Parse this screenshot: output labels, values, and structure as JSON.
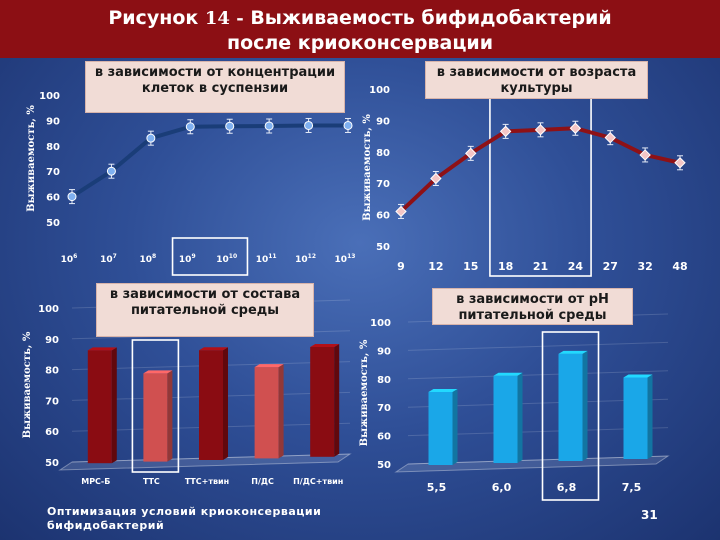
{
  "title": {
    "prefix": "Рисунок",
    "number": "14 -",
    "line1_rest": "Выживаемость бифидобактерий",
    "line2": "после криоконсервации"
  },
  "footer": "Оптимизация условий криоконсервации бифидобактерий",
  "page_number": "31",
  "colors": {
    "title_bg": "#8c0f14",
    "line_blue": "#1a3d78",
    "line_red": "#8e1116",
    "bar_dark_red": "#8a0c12",
    "bar_light_red": "#d05050",
    "bar_cyan": "#1aa7e8",
    "highlight": "#ffffff"
  },
  "chart_data": [
    {
      "type": "line",
      "panel": "top-left",
      "label": "в зависимости от концентрации клеток в суспензии",
      "ylabel": "Выживаемость, %",
      "ylim": [
        50,
        100
      ],
      "yticks": [
        "50",
        "60",
        "70",
        "80",
        "90",
        "100"
      ],
      "categories": [
        "10^6",
        "10^7",
        "10^8",
        "10^9",
        "10^10",
        "10^11",
        "10^12",
        "10^13"
      ],
      "cat_base": "10",
      "cat_exp": [
        "6",
        "7",
        "8",
        "9",
        "10",
        "11",
        "12",
        "13"
      ],
      "values": [
        60,
        70,
        83,
        87.5,
        87.7,
        87.8,
        88,
        88
      ],
      "highlighted": [
        "10^9",
        "10^10"
      ]
    },
    {
      "type": "line",
      "panel": "top-right",
      "label": "в зависимости от возраста культуры",
      "ylabel": "Выживаемость, %",
      "ylim": [
        50,
        100
      ],
      "yticks": [
        "50",
        "60",
        "70",
        "80",
        "90",
        "100"
      ],
      "categories": [
        "9",
        "12",
        "15",
        "18",
        "21",
        "24",
        "27",
        "32",
        "48"
      ],
      "values": [
        61,
        71.5,
        79.5,
        86.5,
        87,
        87.5,
        84.5,
        79,
        76.5
      ],
      "highlighted": [
        "18",
        "21",
        "24"
      ]
    },
    {
      "type": "bar",
      "panel": "bottom-left",
      "label": "в зависимости от состава питательной среды",
      "ylabel": "Выживаемость, %",
      "ylim": [
        50,
        100
      ],
      "yticks": [
        "50",
        "60",
        "70",
        "80",
        "90",
        "100"
      ],
      "categories": [
        "МРС-Б",
        "ТТС",
        "ТТС+твин",
        "П/ДС",
        "П/ДС+твин"
      ],
      "values": [
        86,
        78,
        85,
        79,
        85
      ],
      "highlighted": [
        "ТТС"
      ]
    },
    {
      "type": "bar",
      "panel": "bottom-right",
      "label": "в зависимости от pH питательной среды",
      "ylabel": "Выживаемость, %",
      "ylim": [
        50,
        100
      ],
      "yticks": [
        "50",
        "60",
        "70",
        "80",
        "90",
        "100"
      ],
      "categories": [
        "5,5",
        "6,0",
        "6,8",
        "7,5"
      ],
      "values": [
        75,
        80,
        87,
        78
      ],
      "highlighted": [
        "6,8"
      ]
    }
  ]
}
